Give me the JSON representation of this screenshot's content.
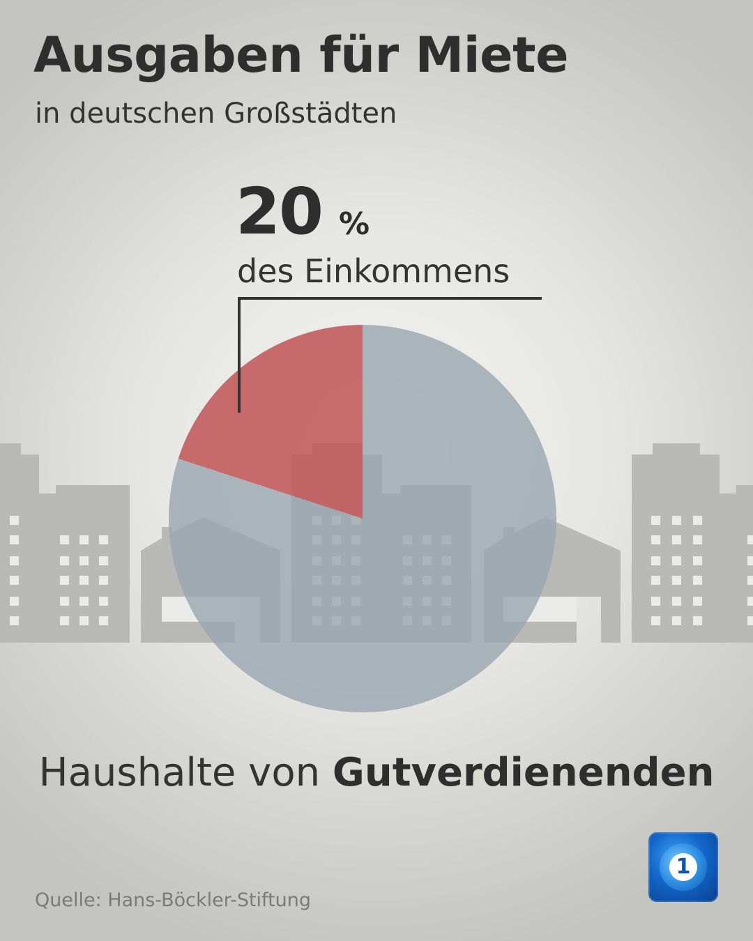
{
  "header": {
    "title": "Ausgaben für Miete",
    "subtitle": "in deutschen Großstädten"
  },
  "highlight": {
    "value": "20",
    "unit": "%",
    "caption": "des Einkommens"
  },
  "group_label": {
    "prefix": "Haushalte von ",
    "emphasis": "Gutverdienenden"
  },
  "source": "Quelle: Hans-Böckler-Stiftung",
  "logo": {
    "icon": "tagesschau-logo-icon",
    "glyph": "1"
  },
  "colors": {
    "highlight_slice": "#c0585a",
    "rest_slice": "#9aa7b1",
    "buildings": "#b9b9b6",
    "text": "#2e2e2e",
    "source_text": "#7a7a77"
  },
  "chart_data": {
    "type": "pie",
    "slices": [
      {
        "label": "des Einkommens",
        "value": 20,
        "color": "#c0585a",
        "highlighted": true
      },
      {
        "label": "",
        "value": 80,
        "color": "#9aa7b1",
        "highlighted": false
      }
    ],
    "start": "12 o'clock",
    "direction": "counterclockwise",
    "title": "Ausgaben für Miete",
    "subtitle": "in deutschen Großstädten"
  }
}
